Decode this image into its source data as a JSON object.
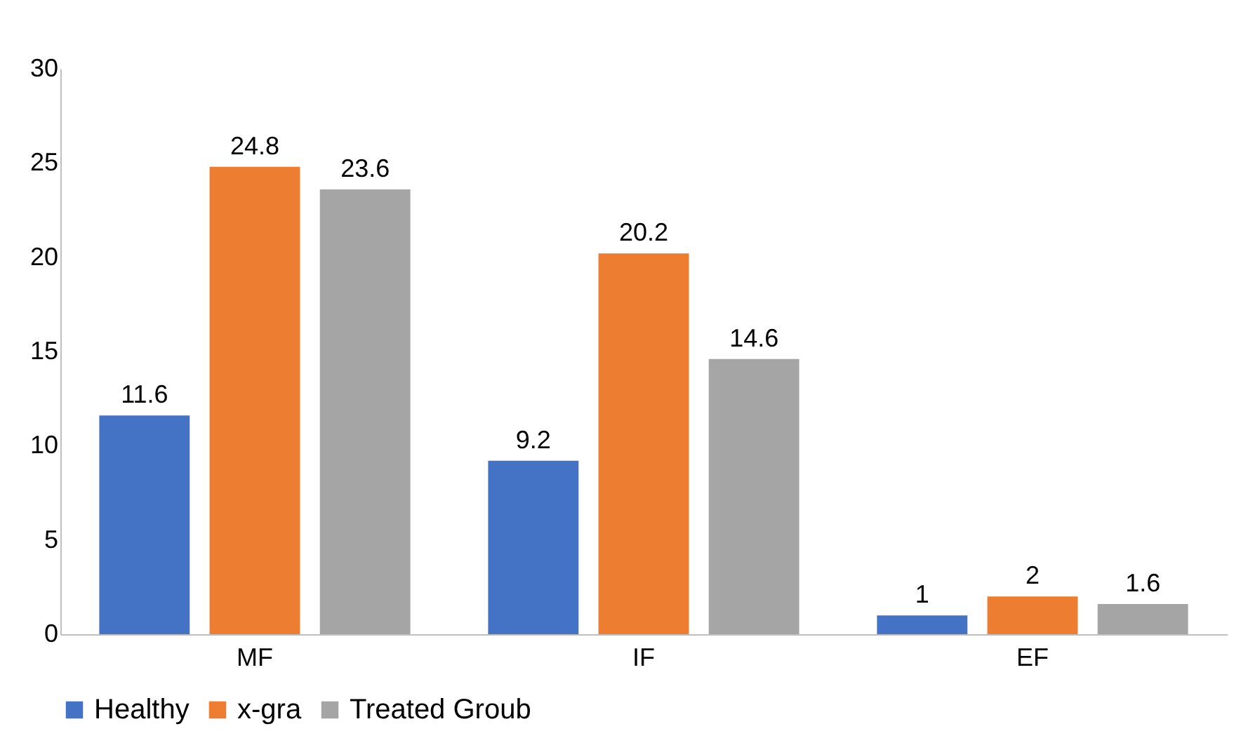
{
  "chart_data": {
    "type": "bar",
    "categories": [
      "MF",
      "IF",
      "EF"
    ],
    "series": [
      {
        "name": "Healthy",
        "color": "#4472c4",
        "values": [
          11.6,
          9.2,
          1
        ]
      },
      {
        "name": "x-gra",
        "color": "#ed7d31",
        "values": [
          24.8,
          20.2,
          2
        ]
      },
      {
        "name": "Treated Groub",
        "color": "#a5a5a5",
        "values": [
          23.6,
          14.6,
          1.6
        ]
      }
    ],
    "ylim": [
      0,
      30
    ],
    "yticks": [
      0,
      5,
      10,
      15,
      20,
      25,
      30
    ],
    "grid": false,
    "legend": "bottom",
    "data_labels": true
  }
}
